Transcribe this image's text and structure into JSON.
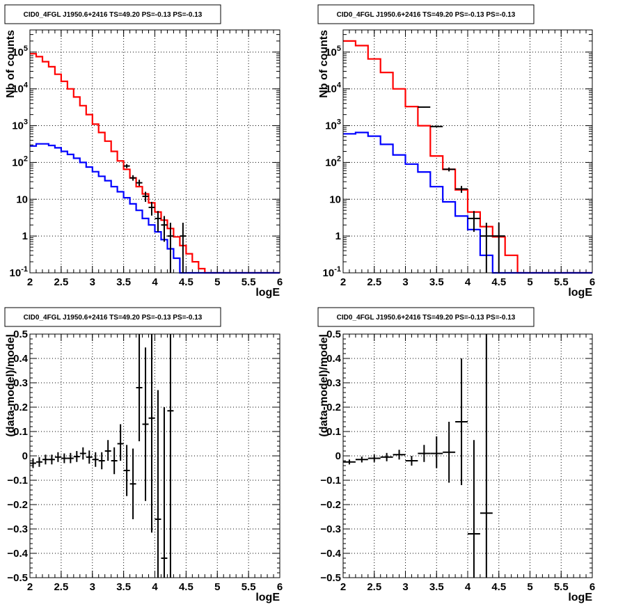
{
  "chart_data": [
    {
      "type": "line",
      "title": "CID0_4FGL J1950.6+2416 TS=49.20 PS=-0.13 PS=-0.13",
      "xlabel": "logE",
      "ylabel": "Nb of counts",
      "yscale": "log",
      "xlim": [
        2,
        6
      ],
      "ylim": [
        0.1,
        400000
      ],
      "grid": true,
      "xticks": [
        "2",
        "2.5",
        "3",
        "3.5",
        "4",
        "4.5",
        "5",
        "5.5",
        "6"
      ],
      "yticks": [
        {
          "v": 0.1,
          "base": "10",
          "exp": "-1"
        },
        {
          "v": 1,
          "text": "1"
        },
        {
          "v": 10,
          "text": "10"
        },
        {
          "v": 100,
          "base": "10",
          "exp": "2"
        },
        {
          "v": 1000,
          "base": "10",
          "exp": "3"
        },
        {
          "v": 10000,
          "base": "10",
          "exp": "4"
        },
        {
          "v": 100000,
          "base": "10",
          "exp": "5"
        }
      ],
      "series": [
        {
          "color": "#ff0000",
          "style": "step",
          "bin_edges": [
            2.0,
            2.1,
            2.2,
            2.3,
            2.4,
            2.5,
            2.6,
            2.7,
            2.8,
            2.9,
            3.0,
            3.1,
            3.2,
            3.3,
            3.4,
            3.5,
            3.6,
            3.7,
            3.8,
            3.9,
            4.0,
            4.1,
            4.2,
            4.3,
            4.4,
            4.5,
            4.6,
            4.7,
            4.8,
            4.9,
            5.0,
            5.1,
            5.2,
            5.3,
            5.4,
            5.5,
            5.6,
            5.7,
            5.8,
            5.9,
            6.0
          ],
          "values": [
            90000,
            75000,
            55000,
            40000,
            25000,
            16000,
            10000,
            6000,
            3500,
            2000,
            1100,
            650,
            380,
            200,
            110,
            65,
            38,
            22,
            14,
            8,
            4.5,
            2.7,
            1.6,
            0.95,
            0.55,
            0.33,
            0.2,
            0.13,
            0.1,
            0.1,
            0.1,
            0.1,
            0.1,
            0.1,
            0.1,
            0.1,
            0.1,
            0.1,
            0.1,
            0.1
          ]
        },
        {
          "color": "#0000ff",
          "style": "step",
          "bin_edges": [
            2.0,
            2.1,
            2.2,
            2.3,
            2.4,
            2.5,
            2.6,
            2.7,
            2.8,
            2.9,
            3.0,
            3.1,
            3.2,
            3.3,
            3.4,
            3.5,
            3.6,
            3.7,
            3.8,
            3.9,
            4.0,
            4.1,
            4.2,
            4.3,
            4.4,
            4.5,
            4.6,
            4.7,
            4.8,
            4.9,
            5.0,
            5.1,
            5.2,
            5.3,
            5.4,
            5.5,
            5.6,
            5.7,
            5.8,
            5.9,
            6.0
          ],
          "values": [
            280,
            320,
            320,
            290,
            250,
            200,
            165,
            130,
            100,
            75,
            56,
            42,
            32,
            22,
            16,
            11,
            7.5,
            5,
            3,
            2,
            1.3,
            0.8,
            0.45,
            0.25,
            0.1,
            0.1,
            0.1,
            0.1,
            0.1,
            0.1,
            0.1,
            0.1,
            0.1,
            0.1,
            0.1,
            0.1,
            0.1,
            0.1,
            0.1,
            0.1
          ]
        }
      ],
      "points": [
        {
          "x": 3.55,
          "y": 80,
          "xerr": 0.05,
          "lo": 70,
          "hi": 90
        },
        {
          "x": 3.65,
          "y": 38,
          "xerr": 0.05,
          "lo": 32,
          "hi": 45
        },
        {
          "x": 3.75,
          "y": 28,
          "xerr": 0.05,
          "lo": 23,
          "hi": 34
        },
        {
          "x": 3.85,
          "y": 12,
          "xerr": 0.05,
          "lo": 8.5,
          "hi": 16
        },
        {
          "x": 3.95,
          "y": 6,
          "xerr": 0.05,
          "lo": 3.6,
          "hi": 8.5
        },
        {
          "x": 4.05,
          "y": 3,
          "xerr": 0.05,
          "lo": 1.3,
          "hi": 4.8
        },
        {
          "x": 4.15,
          "y": 2,
          "xerr": 0.05,
          "lo": 0.7,
          "hi": 3.5
        },
        {
          "x": 4.25,
          "y": 1,
          "xerr": 0.05,
          "lo": 0.1,
          "hi": 2.3
        },
        {
          "x": 4.45,
          "y": 1,
          "xerr": 0.05,
          "lo": 0.1,
          "hi": 2.3
        }
      ]
    },
    {
      "type": "line",
      "title": "CID0_4FGL J1950.6+2416 TS=49.20 PS=-0.13 PS=-0.13",
      "xlabel": "logE",
      "ylabel": "Nb of counts",
      "yscale": "log",
      "xlim": [
        2,
        6
      ],
      "ylim": [
        0.1,
        400000
      ],
      "grid": true,
      "xticks": [
        "2",
        "2.5",
        "3",
        "3.5",
        "4",
        "4.5",
        "5",
        "5.5",
        "6"
      ],
      "yticks": [
        {
          "v": 0.1,
          "base": "10",
          "exp": "-1"
        },
        {
          "v": 1,
          "text": "1"
        },
        {
          "v": 10,
          "text": "10"
        },
        {
          "v": 100,
          "base": "10",
          "exp": "2"
        },
        {
          "v": 1000,
          "base": "10",
          "exp": "3"
        },
        {
          "v": 10000,
          "base": "10",
          "exp": "4"
        },
        {
          "v": 100000,
          "base": "10",
          "exp": "5"
        }
      ],
      "series": [
        {
          "color": "#ff0000",
          "style": "step",
          "bin_edges": [
            2.0,
            2.2,
            2.4,
            2.6,
            2.8,
            3.0,
            3.2,
            3.4,
            3.6,
            3.8,
            4.0,
            4.2,
            4.4,
            4.6,
            4.8,
            5.0,
            5.2,
            5.4,
            5.6,
            5.8,
            6.0
          ],
          "values": [
            200000,
            150000,
            65000,
            28000,
            10000,
            3300,
            1000,
            150,
            65,
            18,
            4.5,
            1.8,
            0.95,
            0.3,
            0.1,
            0.1,
            0.1,
            0.1,
            0.1,
            0.1
          ]
        },
        {
          "color": "#0000ff",
          "style": "step",
          "bin_edges": [
            2.0,
            2.2,
            2.4,
            2.6,
            2.8,
            3.0,
            3.2,
            3.4,
            3.6,
            3.8,
            4.0,
            4.2,
            4.4,
            4.6,
            4.8,
            5.0,
            5.2,
            5.4,
            5.6,
            5.8,
            6.0
          ],
          "values": [
            600,
            650,
            520,
            310,
            160,
            90,
            55,
            22,
            8.5,
            3.5,
            1.5,
            0.3,
            0.1,
            0.1,
            0.1,
            0.1,
            0.1,
            0.1,
            0.1,
            0.1
          ]
        }
      ],
      "points": [
        {
          "x": 3.3,
          "y": 3200,
          "xerr": 0.1,
          "lo": 3100,
          "hi": 3300
        },
        {
          "x": 3.5,
          "y": 950,
          "xerr": 0.1,
          "lo": 910,
          "hi": 990
        },
        {
          "x": 3.7,
          "y": 65,
          "xerr": 0.1,
          "lo": 57,
          "hi": 73
        },
        {
          "x": 3.9,
          "y": 19,
          "xerr": 0.1,
          "lo": 15,
          "hi": 23
        },
        {
          "x": 4.1,
          "y": 3,
          "xerr": 0.1,
          "lo": 1.3,
          "hi": 4.8
        },
        {
          "x": 4.3,
          "y": 1,
          "xerr": 0.1,
          "lo": 0.1,
          "hi": 2.3
        },
        {
          "x": 4.5,
          "y": 1,
          "xerr": 0.1,
          "lo": 0.1,
          "hi": 2.3
        }
      ]
    },
    {
      "type": "scatter",
      "title": "CID0_4FGL J1950.6+2416 TS=49.20 PS=-0.13 PS=-0.13",
      "xlabel": "logE",
      "ylabel": "(data-model)/model",
      "yscale": "linear",
      "xlim": [
        2,
        6
      ],
      "ylim": [
        -0.5,
        0.5
      ],
      "grid": true,
      "xticks": [
        "2",
        "2.5",
        "3",
        "3.5",
        "4",
        "4.5",
        "5",
        "5.5",
        "6"
      ],
      "yticks": [
        {
          "v": -0.5,
          "text": "−0.5"
        },
        {
          "v": -0.4,
          "text": "−0.4"
        },
        {
          "v": -0.3,
          "text": "−0.3"
        },
        {
          "v": -0.2,
          "text": "−0.2"
        },
        {
          "v": -0.1,
          "text": "−0.1"
        },
        {
          "v": 0,
          "text": "0"
        },
        {
          "v": 0.1,
          "text": "0.1"
        },
        {
          "v": 0.2,
          "text": "0.2"
        },
        {
          "v": 0.3,
          "text": "0.3"
        },
        {
          "v": 0.4,
          "text": "0.4"
        },
        {
          "v": 0.5,
          "text": "0.5"
        }
      ],
      "series": [],
      "points": [
        {
          "x": 2.05,
          "y": -0.03,
          "xerr": 0.05,
          "lo": -0.05,
          "hi": -0.01
        },
        {
          "x": 2.15,
          "y": -0.025,
          "xerr": 0.05,
          "lo": -0.045,
          "hi": -0.005
        },
        {
          "x": 2.25,
          "y": -0.015,
          "xerr": 0.05,
          "lo": -0.035,
          "hi": 0.005
        },
        {
          "x": 2.35,
          "y": -0.015,
          "xerr": 0.05,
          "lo": -0.035,
          "hi": 0.005
        },
        {
          "x": 2.45,
          "y": -0.005,
          "xerr": 0.05,
          "lo": -0.025,
          "hi": 0.015
        },
        {
          "x": 2.55,
          "y": -0.01,
          "xerr": 0.05,
          "lo": -0.03,
          "hi": 0.01
        },
        {
          "x": 2.65,
          "y": -0.01,
          "xerr": 0.05,
          "lo": -0.03,
          "hi": 0.012
        },
        {
          "x": 2.75,
          "y": -0.003,
          "xerr": 0.05,
          "lo": -0.025,
          "hi": 0.02
        },
        {
          "x": 2.85,
          "y": 0.01,
          "xerr": 0.05,
          "lo": -0.015,
          "hi": 0.035
        },
        {
          "x": 2.95,
          "y": -0.005,
          "xerr": 0.05,
          "lo": -0.032,
          "hi": 0.022
        },
        {
          "x": 3.05,
          "y": -0.015,
          "xerr": 0.05,
          "lo": -0.045,
          "hi": 0.015
        },
        {
          "x": 3.15,
          "y": -0.02,
          "xerr": 0.05,
          "lo": -0.055,
          "hi": 0.015
        },
        {
          "x": 3.25,
          "y": 0.02,
          "xerr": 0.05,
          "lo": -0.02,
          "hi": 0.065
        },
        {
          "x": 3.35,
          "y": -0.02,
          "xerr": 0.05,
          "lo": -0.075,
          "hi": 0.035
        },
        {
          "x": 3.45,
          "y": 0.05,
          "xerr": 0.05,
          "lo": -0.02,
          "hi": 0.13
        },
        {
          "x": 3.55,
          "y": -0.06,
          "xerr": 0.05,
          "lo": -0.165,
          "hi": 0.045
        },
        {
          "x": 3.65,
          "y": -0.115,
          "xerr": 0.05,
          "lo": -0.26,
          "hi": 0.03
        },
        {
          "x": 3.75,
          "y": 0.28,
          "xerr": 0.05,
          "lo": 0.06,
          "hi": 0.5
        },
        {
          "x": 3.85,
          "y": 0.13,
          "xerr": 0.05,
          "lo": -0.185,
          "hi": 0.445
        },
        {
          "x": 3.95,
          "y": 0.155,
          "xerr": 0.05,
          "lo": -0.315,
          "hi": 0.5
        },
        {
          "x": 4.05,
          "y": -0.26,
          "xerr": 0.05,
          "lo": -0.5,
          "hi": 0.27
        },
        {
          "x": 4.15,
          "y": -0.42,
          "xerr": 0.05,
          "lo": -0.5,
          "hi": 0.2
        },
        {
          "x": 4.25,
          "y": 0.185,
          "xerr": 0.05,
          "lo": -0.5,
          "hi": 0.5
        }
      ]
    },
    {
      "type": "scatter",
      "title": "CID0_4FGL J1950.6+2416 TS=49.20 PS=-0.13 PS=-0.13",
      "xlabel": "logE",
      "ylabel": "(data-model)/model",
      "yscale": "linear",
      "xlim": [
        2,
        6
      ],
      "ylim": [
        -0.5,
        0.5
      ],
      "grid": true,
      "xticks": [
        "2",
        "2.5",
        "3",
        "3.5",
        "4",
        "4.5",
        "5",
        "5.5",
        "6"
      ],
      "yticks": [
        {
          "v": -0.5,
          "text": "−0.5"
        },
        {
          "v": -0.4,
          "text": "−0.4"
        },
        {
          "v": -0.3,
          "text": "−0.3"
        },
        {
          "v": -0.2,
          "text": "−0.2"
        },
        {
          "v": -0.1,
          "text": "−0.1"
        },
        {
          "v": 0,
          "text": "0"
        },
        {
          "v": 0.1,
          "text": "0.1"
        },
        {
          "v": 0.2,
          "text": "0.2"
        },
        {
          "v": 0.3,
          "text": "0.3"
        },
        {
          "v": 0.4,
          "text": "0.4"
        },
        {
          "v": 0.5,
          "text": "0.5"
        }
      ],
      "series": [],
      "points": [
        {
          "x": 2.1,
          "y": -0.025,
          "xerr": 0.1,
          "lo": -0.035,
          "hi": -0.015
        },
        {
          "x": 2.3,
          "y": -0.015,
          "xerr": 0.1,
          "lo": -0.027,
          "hi": -0.003
        },
        {
          "x": 2.5,
          "y": -0.01,
          "xerr": 0.1,
          "lo": -0.025,
          "hi": 0.005
        },
        {
          "x": 2.7,
          "y": -0.005,
          "xerr": 0.1,
          "lo": -0.022,
          "hi": 0.012
        },
        {
          "x": 2.9,
          "y": 0.005,
          "xerr": 0.1,
          "lo": -0.015,
          "hi": 0.025
        },
        {
          "x": 3.1,
          "y": -0.02,
          "xerr": 0.1,
          "lo": -0.04,
          "hi": 0.0
        },
        {
          "x": 3.3,
          "y": 0.01,
          "xerr": 0.1,
          "lo": -0.025,
          "hi": 0.045
        },
        {
          "x": 3.5,
          "y": 0.01,
          "xerr": 0.1,
          "lo": -0.05,
          "hi": 0.08
        },
        {
          "x": 3.7,
          "y": 0.015,
          "xerr": 0.1,
          "lo": -0.11,
          "hi": 0.14
        },
        {
          "x": 3.9,
          "y": 0.14,
          "xerr": 0.1,
          "lo": -0.12,
          "hi": 0.4
        },
        {
          "x": 4.1,
          "y": -0.32,
          "xerr": 0.1,
          "lo": -0.5,
          "hi": 0.065
        },
        {
          "x": 4.3,
          "y": -0.235,
          "xerr": 0.1,
          "lo": -0.5,
          "hi": 0.5
        }
      ]
    }
  ]
}
